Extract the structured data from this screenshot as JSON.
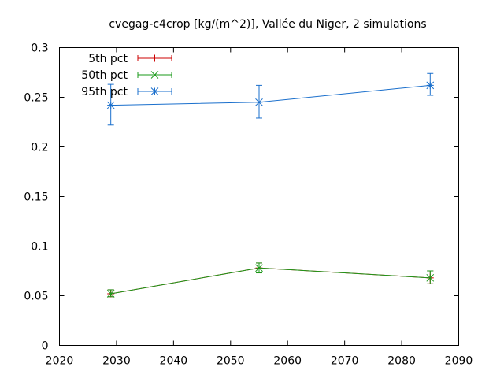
{
  "chart_data": {
    "type": "line",
    "title": "cvegag-c4crop [kg/(m^2)], Vallée du Niger, 2 simulations",
    "xlabel": "",
    "ylabel": "",
    "xlim": [
      2020,
      2090
    ],
    "ylim": [
      0,
      0.3
    ],
    "xticks": [
      2020,
      2030,
      2040,
      2050,
      2060,
      2070,
      2080,
      2090
    ],
    "yticks": [
      0,
      0.05,
      0.1,
      0.15,
      0.2,
      0.25,
      0.3
    ],
    "xtick_labels": [
      "2020",
      "2030",
      "2040",
      "2050",
      "2060",
      "2070",
      "2080",
      "2090"
    ],
    "ytick_labels": [
      "0",
      "0.05",
      "0.1",
      "0.15",
      "0.2",
      "0.25",
      "0.3"
    ],
    "grid": false,
    "legend_position": "top-left",
    "x": [
      2029,
      2055,
      2085
    ],
    "series": [
      {
        "name": "5th pct",
        "color": "#cc0000",
        "marker": "plus",
        "values": [
          0.052,
          0.078,
          0.068
        ],
        "err_low": [
          0.049,
          0.073,
          0.062
        ],
        "err_high": [
          0.056,
          0.083,
          0.075
        ]
      },
      {
        "name": "50th pct",
        "color": "#1a9a1a",
        "marker": "cross",
        "values": [
          0.052,
          0.078,
          0.068
        ],
        "err_low": [
          0.049,
          0.073,
          0.062
        ],
        "err_high": [
          0.056,
          0.083,
          0.075
        ]
      },
      {
        "name": "95th pct",
        "color": "#1a6fcc",
        "marker": "star",
        "values": [
          0.242,
          0.245,
          0.262
        ],
        "err_low": [
          0.222,
          0.229,
          0.252
        ],
        "err_high": [
          0.263,
          0.262,
          0.274
        ]
      }
    ]
  }
}
